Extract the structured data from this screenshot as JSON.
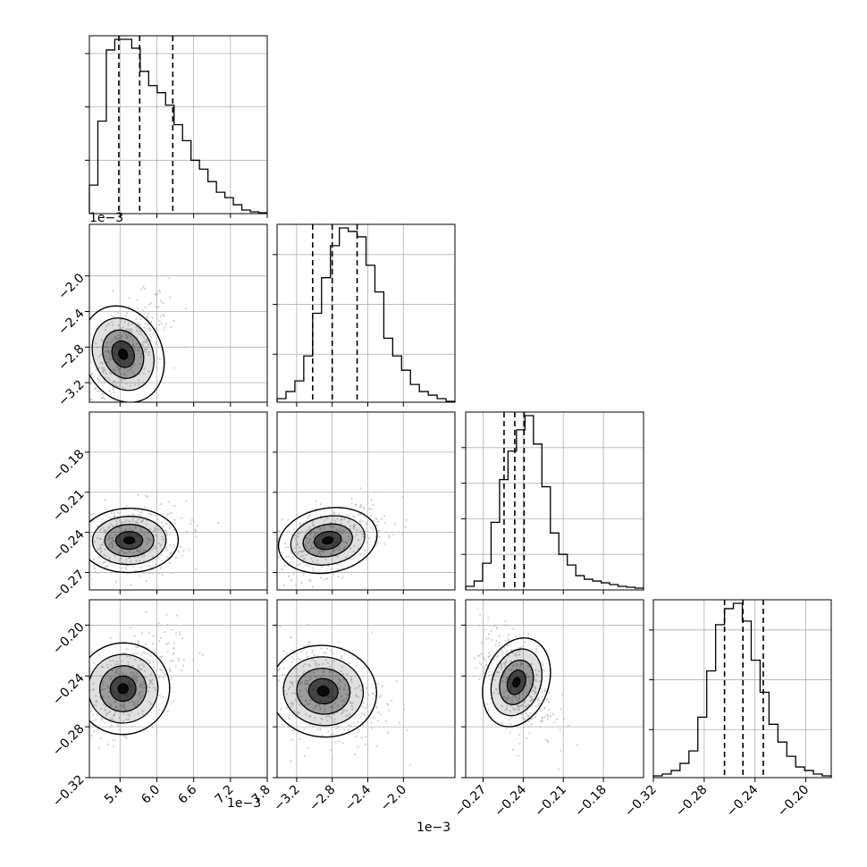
{
  "chart_data": {
    "type": "corner",
    "parameters": [
      {
        "index": 0,
        "range": [
          4.9,
          7.8
        ],
        "ticks": [
          5.4,
          6.0,
          6.6,
          7.2,
          7.8
        ],
        "tick_labels": [
          "5.4",
          "6.0",
          "6.6",
          "7.2",
          "7.8"
        ],
        "offset_label": "1e−3",
        "quantiles": [
          5.38,
          5.72,
          6.26
        ]
      },
      {
        "index": 1,
        "range": [
          -3.42,
          -1.42
        ],
        "ticks": [
          -3.2,
          -2.8,
          -2.4,
          -2.0
        ],
        "tick_labels": [
          "−3.2",
          "−2.8",
          "−2.4",
          "−2.0"
        ],
        "offset_label": "1e−3",
        "quantiles": [
          -3.02,
          -2.8,
          -2.52
        ]
      },
      {
        "index": 2,
        "range": [
          -0.283,
          -0.15
        ],
        "ticks": [
          -0.27,
          -0.24,
          -0.21,
          -0.18
        ],
        "tick_labels": [
          "−0.27",
          "−0.24",
          "−0.21",
          "−0.18"
        ],
        "offset_label": "",
        "quantiles": [
          -0.2543,
          -0.2463,
          -0.2393
        ]
      },
      {
        "index": 3,
        "range": [
          -0.32,
          -0.18
        ],
        "ticks": [
          -0.32,
          -0.28,
          -0.24,
          -0.2
        ],
        "tick_labels": [
          "−0.32",
          "−0.28",
          "−0.24",
          "−0.20"
        ],
        "offset_label": "",
        "quantiles": [
          -0.264,
          -0.2495,
          -0.2335
        ]
      }
    ],
    "diag_ticks": [
      {
        "ylim": [
          0,
          1.0
        ],
        "ticks": [
          0.3,
          0.6,
          0.9
        ]
      },
      {
        "ylim": [
          0,
          1.0
        ],
        "ticks": [
          0.27,
          0.55,
          0.83
        ]
      },
      {
        "ylim": [
          0,
          1.0
        ],
        "ticks": [
          0.2,
          0.4,
          0.6,
          0.8
        ]
      },
      {
        "ylim": [
          0,
          1.0
        ],
        "ticks": [
          0.27,
          0.55,
          0.83
        ]
      }
    ],
    "histograms": [
      [
        0.16,
        0.52,
        0.92,
        0.98,
        0.98,
        0.93,
        0.8,
        0.72,
        0.68,
        0.61,
        0.5,
        0.41,
        0.3,
        0.25,
        0.18,
        0.12,
        0.09,
        0.05,
        0.02,
        0.01,
        0.005
      ],
      [
        0.02,
        0.06,
        0.12,
        0.26,
        0.5,
        0.7,
        0.88,
        0.98,
        0.96,
        0.93,
        0.77,
        0.62,
        0.36,
        0.26,
        0.18,
        0.1,
        0.06,
        0.04,
        0.02,
        0.005
      ],
      [
        0.02,
        0.05,
        0.15,
        0.38,
        0.62,
        0.78,
        0.9,
        0.98,
        0.82,
        0.58,
        0.32,
        0.2,
        0.14,
        0.08,
        0.06,
        0.05,
        0.04,
        0.03,
        0.02,
        0.015,
        0.01
      ],
      [
        0.01,
        0.02,
        0.04,
        0.08,
        0.15,
        0.34,
        0.6,
        0.86,
        0.95,
        0.98,
        0.88,
        0.66,
        0.48,
        0.3,
        0.2,
        0.12,
        0.06,
        0.04,
        0.02,
        0.01
      ]
    ],
    "pairs": [
      {
        "i": 0,
        "j": 1,
        "center": [
          5.45,
          -2.88
        ],
        "spread": [
          0.32,
          0.28
        ],
        "rho": 0.65,
        "points": 420
      },
      {
        "i": 0,
        "j": 2,
        "center": [
          5.55,
          -0.246
        ],
        "spread": [
          0.4,
          0.012
        ],
        "rho": 0.05,
        "points": 420
      },
      {
        "i": 1,
        "j": 2,
        "center": [
          -2.85,
          -0.246
        ],
        "spread": [
          0.28,
          0.012
        ],
        "rho": 0.5,
        "points": 420
      },
      {
        "i": 0,
        "j": 3,
        "center": [
          5.45,
          -0.25
        ],
        "spread": [
          0.38,
          0.018
        ],
        "rho": 0.55,
        "points": 420
      },
      {
        "i": 1,
        "j": 3,
        "center": [
          -2.9,
          -0.252
        ],
        "spread": [
          0.3,
          0.018
        ],
        "rho": -0.25,
        "points": 420
      },
      {
        "i": 2,
        "j": 3,
        "center": [
          -0.245,
          -0.245
        ],
        "spread": [
          0.012,
          0.018
        ],
        "rho": -0.45,
        "points": 420
      }
    ],
    "grid": true,
    "colors": {
      "line": "#000000",
      "grid": "#b0b0b0",
      "scatter": "#bdbdbd",
      "density": "#000000"
    }
  }
}
